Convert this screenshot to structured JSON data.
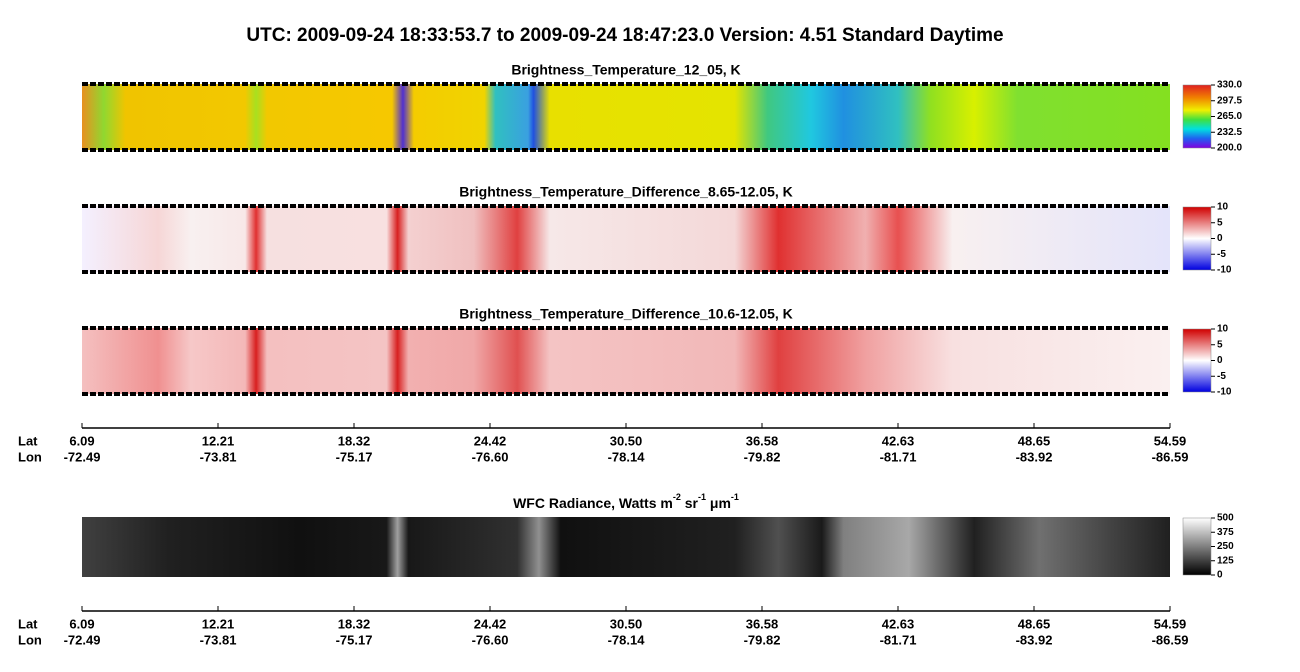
{
  "title": "UTC:  2009-09-24   18:33:53.7  to  2009-09-24   18:47:23.0    Version: 4.51  Standard Daytime",
  "panels": [
    {
      "title": "Brightness_Temperature_12_05, K",
      "colorbar": {
        "ticks": [
          {
            "value": 330,
            "label": "330.0"
          },
          {
            "value": 297.5,
            "label": "297.5"
          },
          {
            "value": 265,
            "label": "265.0"
          },
          {
            "value": 232.5,
            "label": "232.5"
          },
          {
            "value": 200,
            "label": "200.0"
          }
        ]
      }
    },
    {
      "title": "Brightness_Temperature_Difference_8.65-12.05, K",
      "colorbar": {
        "ticks": [
          10,
          5,
          0,
          -5,
          -10
        ]
      }
    },
    {
      "title": "Brightness_Temperature_Difference_10.6-12.05, K",
      "colorbar": {
        "ticks": [
          10,
          5,
          0,
          -5,
          -10
        ]
      }
    },
    {
      "title_parts": [
        "WFC Radiance, Watts m",
        "-2",
        " sr",
        "-1",
        " μm",
        "-1"
      ],
      "colorbar": {
        "ticks": [
          500,
          375,
          250,
          125,
          0
        ]
      }
    }
  ],
  "axes": [
    {
      "lat_label": "Lat",
      "lon_label": "Lon",
      "lat": [
        6.09,
        12.21,
        18.32,
        24.42,
        {
          "value": 30.5,
          "label": "30.50"
        },
        36.58,
        42.63,
        48.65,
        54.59
      ],
      "lon": [
        -72.49,
        -73.81,
        -75.17,
        {
          "value": -76.6,
          "label": "-76.60"
        },
        -78.14,
        -79.82,
        -81.71,
        -83.92,
        -86.59
      ]
    },
    {
      "lat_label": "Lat",
      "lon_label": "Lon",
      "lat": [
        6.09,
        12.21,
        18.32,
        24.42,
        {
          "value": 30.5,
          "label": "30.50"
        },
        36.58,
        42.63,
        48.65,
        54.59
      ],
      "lon": [
        -72.49,
        -73.81,
        -75.17,
        {
          "value": -76.6,
          "label": "-76.60"
        },
        -78.14,
        -79.82,
        -81.71,
        -83.92,
        -86.59
      ]
    }
  ]
}
